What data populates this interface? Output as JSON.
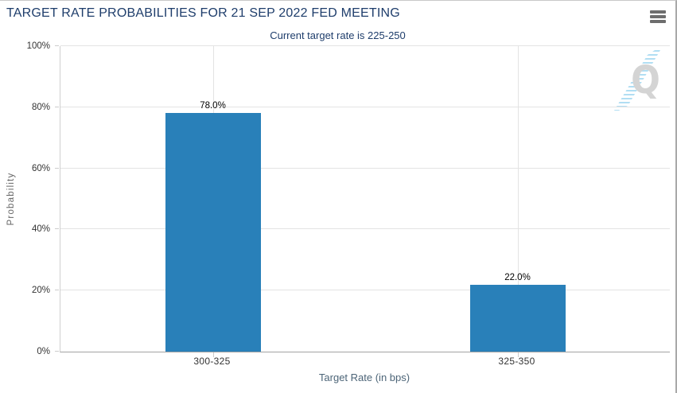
{
  "header": {
    "menu_icon": "hamburger-menu-icon"
  },
  "chart_data": {
    "type": "bar",
    "title": "TARGET RATE PROBABILITIES FOR 21 SEP 2022 FED MEETING",
    "subtitle": "Current target rate is 225-250",
    "categories": [
      "300-325",
      "325-350"
    ],
    "values": [
      78.0,
      22.0
    ],
    "bar_labels": [
      "78.0%",
      "22.0%"
    ],
    "xlabel": "Target Rate (in bps)",
    "ylabel": "Probability",
    "ylim": [
      0,
      100
    ],
    "yticks": [
      0,
      20,
      40,
      60,
      80,
      100
    ],
    "ytick_labels": [
      "0%",
      "20%",
      "40%",
      "60%",
      "80%",
      "100%"
    ],
    "grid": true,
    "legend": false,
    "watermark_text": "Q",
    "colors": {
      "bar": "#2980b9",
      "title_text": "#1e3d6b",
      "axis_title_text": "#4d6578",
      "watermark_letter": "#d4d4d4",
      "watermark_swoosh": "#7dc8eb"
    }
  }
}
